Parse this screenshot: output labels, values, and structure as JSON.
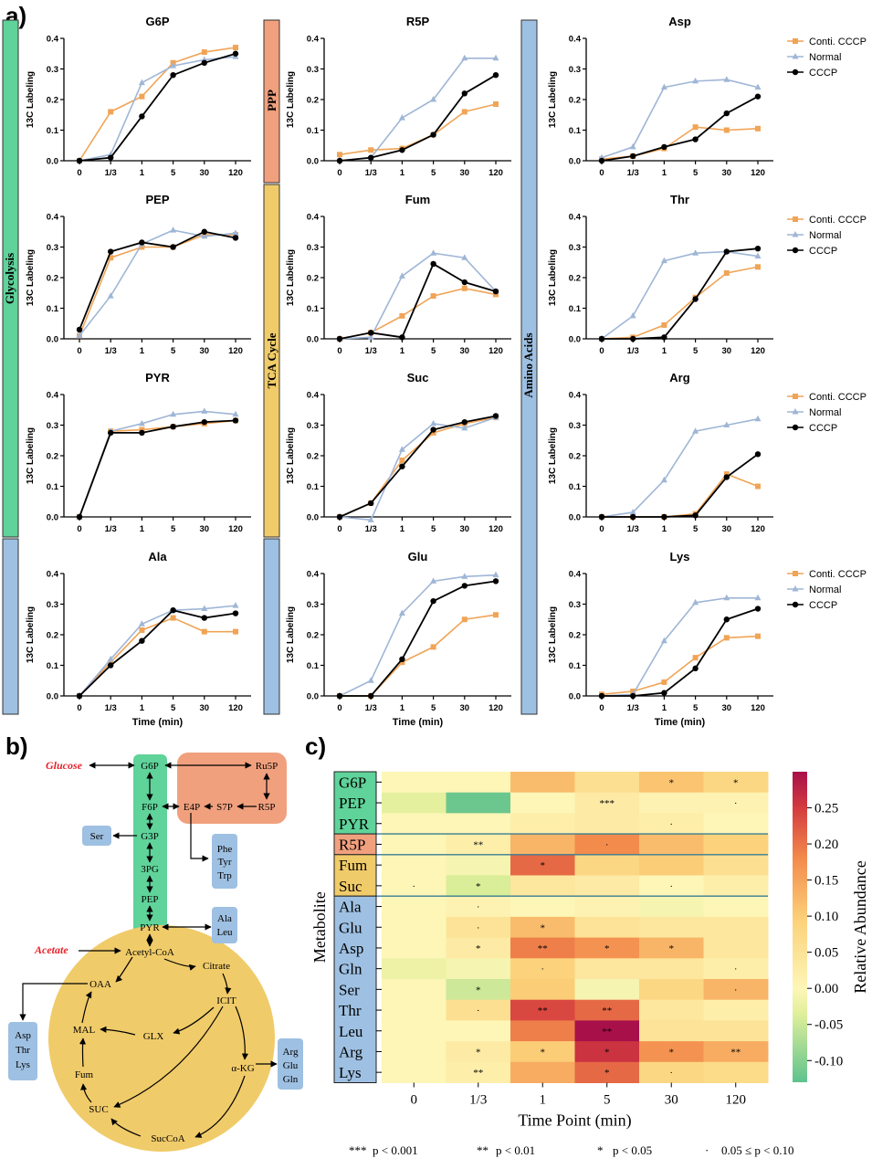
{
  "panel_labels": {
    "a": "a)",
    "b": "b)",
    "c": "c)"
  },
  "colors": {
    "conti": "#f0a456",
    "normal": "#9fb6d6",
    "cccp": "#000000",
    "green": "#5fd39a",
    "orange": "#f1a07e",
    "yellow": "#f0cb69",
    "blue": "#9ec0e2"
  },
  "side_labels": {
    "glycolysis": "Glycolysis",
    "ppp": "PPP",
    "tca": "TCA Cycle",
    "amino": "Amino Acids"
  },
  "legend": {
    "conti": "Conti. CCCP",
    "normal": "Normal",
    "cccp": "CCCP"
  },
  "chart_data": [
    {
      "type": "line",
      "title": "G6P",
      "ylabel": "13C Labeling",
      "xlabel": "",
      "categories": [
        "0",
        "1/3",
        "1",
        "5",
        "30",
        "120"
      ],
      "ylim": [
        0,
        0.4
      ],
      "yticks": [
        "0.0",
        "0.1",
        "0.2",
        "0.3",
        "0.4"
      ],
      "series": [
        {
          "name": "Conti. CCCP",
          "values": [
            0,
            0.16,
            0.21,
            0.32,
            0.355,
            0.37
          ]
        },
        {
          "name": "Normal",
          "values": [
            0,
            0.02,
            0.255,
            0.31,
            0.33,
            0.34
          ]
        },
        {
          "name": "CCCP",
          "values": [
            0,
            0.01,
            0.145,
            0.28,
            0.32,
            0.35
          ]
        }
      ]
    },
    {
      "type": "line",
      "title": "R5P",
      "ylabel": "13C Labeling",
      "xlabel": "",
      "categories": [
        "0",
        "1/3",
        "1",
        "5",
        "30",
        "120"
      ],
      "ylim": [
        0,
        0.4
      ],
      "yticks": [
        "0.0",
        "0.1",
        "0.2",
        "0.3",
        "0.4"
      ],
      "series": [
        {
          "name": "Conti. CCCP",
          "values": [
            0.02,
            0.035,
            0.04,
            0.085,
            0.16,
            0.185
          ]
        },
        {
          "name": "Normal",
          "values": [
            0,
            0.01,
            0.14,
            0.2,
            0.335,
            0.335
          ]
        },
        {
          "name": "CCCP",
          "values": [
            0,
            0.01,
            0.035,
            0.085,
            0.22,
            0.28
          ]
        }
      ]
    },
    {
      "type": "line",
      "title": "Asp",
      "ylabel": "13C Labeling",
      "xlabel": "",
      "categories": [
        "0",
        "1/3",
        "1",
        "5",
        "30",
        "120"
      ],
      "ylim": [
        0,
        0.4
      ],
      "yticks": [
        "0.0",
        "0.1",
        "0.2",
        "0.3",
        "0.4"
      ],
      "series": [
        {
          "name": "Conti. CCCP",
          "values": [
            0.005,
            0.015,
            0.04,
            0.11,
            0.1,
            0.105
          ]
        },
        {
          "name": "Normal",
          "values": [
            0.01,
            0.045,
            0.24,
            0.26,
            0.265,
            0.24
          ]
        },
        {
          "name": "CCCP",
          "values": [
            0,
            0.015,
            0.045,
            0.07,
            0.155,
            0.21
          ]
        }
      ]
    },
    {
      "type": "line",
      "title": "PEP",
      "ylabel": "13C Labeling",
      "xlabel": "",
      "categories": [
        "0",
        "1/3",
        "1",
        "5",
        "30",
        "120"
      ],
      "ylim": [
        0,
        0.4
      ],
      "yticks": [
        "0.0",
        "0.1",
        "0.2",
        "0.3",
        "0.4"
      ],
      "series": [
        {
          "name": "Conti. CCCP",
          "values": [
            0.01,
            0.265,
            0.3,
            0.3,
            0.34,
            0.34
          ]
        },
        {
          "name": "Normal",
          "values": [
            0.01,
            0.14,
            0.31,
            0.355,
            0.335,
            0.345
          ]
        },
        {
          "name": "CCCP",
          "values": [
            0.03,
            0.285,
            0.315,
            0.3,
            0.35,
            0.33
          ]
        }
      ]
    },
    {
      "type": "line",
      "title": "Fum",
      "ylabel": "13C Labeling",
      "xlabel": "",
      "categories": [
        "0",
        "1/3",
        "1",
        "5",
        "30",
        "120"
      ],
      "ylim": [
        0,
        0.4
      ],
      "yticks": [
        "0.0",
        "0.1",
        "0.2",
        "0.3",
        "0.4"
      ],
      "series": [
        {
          "name": "Conti. CCCP",
          "values": [
            0,
            0.02,
            0.075,
            0.14,
            0.165,
            0.145
          ]
        },
        {
          "name": "Normal",
          "values": [
            0,
            0.005,
            0.205,
            0.28,
            0.265,
            0.155
          ]
        },
        {
          "name": "CCCP",
          "values": [
            0,
            0.02,
            0.005,
            0.245,
            0.185,
            0.155
          ]
        }
      ]
    },
    {
      "type": "line",
      "title": "Thr",
      "ylabel": "13C Labeling",
      "xlabel": "",
      "categories": [
        "0",
        "1/3",
        "1",
        "5",
        "30",
        "120"
      ],
      "ylim": [
        0,
        0.4
      ],
      "yticks": [
        "0.0",
        "0.1",
        "0.2",
        "0.3",
        "0.4"
      ],
      "series": [
        {
          "name": "Conti. CCCP",
          "values": [
            0,
            0.005,
            0.045,
            0.135,
            0.215,
            0.235
          ]
        },
        {
          "name": "Normal",
          "values": [
            0,
            0.075,
            0.255,
            0.28,
            0.285,
            0.27
          ]
        },
        {
          "name": "CCCP",
          "values": [
            0,
            0,
            0.005,
            0.13,
            0.285,
            0.295
          ]
        }
      ]
    },
    {
      "type": "line",
      "title": "PYR",
      "ylabel": "13C Labeling",
      "xlabel": "",
      "categories": [
        "0",
        "1/3",
        "1",
        "5",
        "30",
        "120"
      ],
      "ylim": [
        0,
        0.4
      ],
      "yticks": [
        "0.0",
        "0.1",
        "0.2",
        "0.3",
        "0.4"
      ],
      "series": [
        {
          "name": "Conti. CCCP",
          "values": [
            0,
            0.28,
            0.285,
            0.295,
            0.305,
            0.315
          ]
        },
        {
          "name": "Normal",
          "values": [
            0,
            0.28,
            0.305,
            0.335,
            0.345,
            0.335
          ]
        },
        {
          "name": "CCCP",
          "values": [
            0,
            0.275,
            0.275,
            0.295,
            0.31,
            0.315
          ]
        }
      ]
    },
    {
      "type": "line",
      "title": "Suc",
      "ylabel": "13C Labeling",
      "xlabel": "",
      "categories": [
        "0",
        "1/3",
        "1",
        "5",
        "30",
        "120"
      ],
      "ylim": [
        0,
        0.4
      ],
      "yticks": [
        "0.0",
        "0.1",
        "0.2",
        "0.3",
        "0.4"
      ],
      "series": [
        {
          "name": "Conti. CCCP",
          "values": [
            0,
            0.045,
            0.185,
            0.275,
            0.305,
            0.325
          ]
        },
        {
          "name": "Normal",
          "values": [
            0,
            -0.01,
            0.22,
            0.305,
            0.29,
            0.325
          ]
        },
        {
          "name": "CCCP",
          "values": [
            0,
            0.045,
            0.165,
            0.285,
            0.31,
            0.33
          ]
        }
      ]
    },
    {
      "type": "line",
      "title": "Arg",
      "ylabel": "13C Labeling",
      "xlabel": "",
      "categories": [
        "0",
        "1/3",
        "1",
        "5",
        "30",
        "120"
      ],
      "ylim": [
        0,
        0.4
      ],
      "yticks": [
        "0.0",
        "0.1",
        "0.2",
        "0.3",
        "0.4"
      ],
      "series": [
        {
          "name": "Conti. CCCP",
          "values": [
            0,
            0,
            0,
            0.01,
            0.14,
            0.1
          ]
        },
        {
          "name": "Normal",
          "values": [
            0,
            0.015,
            0.12,
            0.28,
            0.3,
            0.32
          ]
        },
        {
          "name": "CCCP",
          "values": [
            0,
            0,
            0,
            0.005,
            0.13,
            0.205
          ]
        }
      ]
    },
    {
      "type": "line",
      "title": "Ala",
      "ylabel": "13C Labeling",
      "xlabel": "Time (min)",
      "categories": [
        "0",
        "1/3",
        "1",
        "5",
        "30",
        "120"
      ],
      "ylim": [
        0,
        0.4
      ],
      "yticks": [
        "0.0",
        "0.1",
        "0.2",
        "0.3",
        "0.4"
      ],
      "series": [
        {
          "name": "Conti. CCCP",
          "values": [
            0,
            0.11,
            0.215,
            0.255,
            0.21,
            0.21
          ]
        },
        {
          "name": "Normal",
          "values": [
            0,
            0.12,
            0.235,
            0.28,
            0.285,
            0.295
          ]
        },
        {
          "name": "CCCP",
          "values": [
            0,
            0.1,
            0.18,
            0.28,
            0.255,
            0.27
          ]
        }
      ]
    },
    {
      "type": "line",
      "title": "Glu",
      "ylabel": "13C Labeling",
      "xlabel": "Time (min)",
      "categories": [
        "0",
        "1/3",
        "1",
        "5",
        "30",
        "120"
      ],
      "ylim": [
        0,
        0.4
      ],
      "yticks": [
        "0.0",
        "0.1",
        "0.2",
        "0.3",
        "0.4"
      ],
      "series": [
        {
          "name": "Conti. CCCP",
          "values": [
            0,
            0,
            0.11,
            0.16,
            0.25,
            0.265
          ]
        },
        {
          "name": "Normal",
          "values": [
            0,
            0.05,
            0.27,
            0.375,
            0.39,
            0.395
          ]
        },
        {
          "name": "CCCP",
          "values": [
            0,
            0,
            0.12,
            0.31,
            0.36,
            0.375
          ]
        }
      ]
    },
    {
      "type": "line",
      "title": "Lys",
      "ylabel": "13C Labeling",
      "xlabel": "Time (min)",
      "categories": [
        "0",
        "1/3",
        "1",
        "5",
        "30",
        "120"
      ],
      "ylim": [
        0,
        0.4
      ],
      "yticks": [
        "0.0",
        "0.1",
        "0.2",
        "0.3",
        "0.4"
      ],
      "series": [
        {
          "name": "Conti. CCCP",
          "values": [
            0.005,
            0.015,
            0.045,
            0.125,
            0.19,
            0.195
          ]
        },
        {
          "name": "Normal",
          "values": [
            0,
            0.005,
            0.18,
            0.305,
            0.32,
            0.32
          ]
        },
        {
          "name": "CCCP",
          "values": [
            0,
            0,
            0.01,
            0.09,
            0.25,
            0.285
          ]
        }
      ]
    },
    {
      "type": "heatmap",
      "title": "",
      "xlabel": "Time Point (min)",
      "ylabel": "Metabolite",
      "colorbar_label": "Relative Abundance",
      "columns": [
        "0",
        "1/3",
        "1",
        "5",
        "30",
        "120"
      ],
      "rows": [
        "G6P",
        "PEP",
        "PYR",
        "R5P",
        "Fum",
        "Suc",
        "Ala",
        "Glu",
        "Asp",
        "Gln",
        "Ser",
        "Thr",
        "Leu",
        "Arg",
        "Lys"
      ],
      "values": [
        [
          0.0,
          0.0,
          0.12,
          0.06,
          0.11,
          0.08
        ],
        [
          -0.03,
          -0.12,
          0.0,
          0.03,
          0.01,
          0.01
        ],
        [
          0.0,
          0.0,
          0.02,
          0.03,
          0.02,
          0.0
        ],
        [
          0.0,
          0.02,
          0.13,
          0.18,
          0.12,
          0.09
        ],
        [
          0.0,
          -0.01,
          0.21,
          0.08,
          0.1,
          0.06
        ],
        [
          0.0,
          -0.04,
          0.04,
          0.03,
          0.0,
          0.02
        ],
        [
          0.0,
          0.01,
          0.0,
          0.01,
          -0.01,
          0.0
        ],
        [
          0.0,
          0.05,
          0.12,
          0.05,
          0.04,
          0.04
        ],
        [
          0.0,
          0.03,
          0.19,
          0.17,
          0.13,
          0.04
        ],
        [
          -0.02,
          -0.01,
          0.09,
          0.04,
          0.04,
          0.02
        ],
        [
          0.0,
          -0.05,
          0.1,
          -0.01,
          0.08,
          0.13
        ],
        [
          0.0,
          0.06,
          0.24,
          0.21,
          0.04,
          0.02
        ],
        [
          0.0,
          0.0,
          0.19,
          0.3,
          0.05,
          0.05
        ],
        [
          0.0,
          0.03,
          0.1,
          0.26,
          0.17,
          0.14
        ],
        [
          0.0,
          0.02,
          0.14,
          0.21,
          0.08,
          0.07
        ]
      ],
      "sig": [
        [
          "",
          "",
          "",
          "",
          "*",
          "*"
        ],
        [
          "",
          "",
          "",
          "***",
          "",
          "·"
        ],
        [
          "",
          "",
          "",
          "",
          "·",
          ""
        ],
        [
          "",
          "**",
          "",
          "·",
          "",
          ""
        ],
        [
          "",
          "",
          "*",
          "",
          "",
          ""
        ],
        [
          "·",
          "*",
          "",
          "",
          "·",
          ""
        ],
        [
          "",
          "·",
          "",
          "",
          "",
          ""
        ],
        [
          "",
          "·",
          "*",
          "",
          "",
          ""
        ],
        [
          "",
          "*",
          "**",
          "*",
          "*",
          ""
        ],
        [
          "",
          "",
          "·",
          "",
          "",
          "·"
        ],
        [
          "",
          "*",
          "",
          "",
          "",
          "·"
        ],
        [
          "",
          "·",
          "**",
          "**",
          "",
          ""
        ],
        [
          "",
          "",
          "",
          "**",
          "",
          ""
        ],
        [
          "",
          "*",
          "*",
          "*",
          "*",
          "**"
        ],
        [
          "",
          "**",
          "",
          "*",
          "·",
          ""
        ]
      ],
      "colorbar_ticks": [
        "0.25",
        "0.20",
        "0.15",
        "0.10",
        "0.05",
        "0.00",
        "-0.05",
        "-0.10"
      ],
      "colorbar_values": [
        0.25,
        0.2,
        0.15,
        0.1,
        0.05,
        0.0,
        -0.05,
        -0.1
      ],
      "vmin": -0.13,
      "vmax": 0.3
    }
  ],
  "pathway": {
    "glucose": "Glucose",
    "acetate": "Acetate",
    "g6p": "G6P",
    "f6p": "F6P",
    "g3p": "G3P",
    "pg3": "3PG",
    "pep": "PEP",
    "pyr": "PYR",
    "ru5p": "Ru5P",
    "r5p": "R5P",
    "s7p": "S7P",
    "e4p": "E4P",
    "ser": "Ser",
    "phe": "Phe",
    "tyr": "Tyr",
    "trp": "Trp",
    "ala": "Ala",
    "leu": "Leu",
    "acetylcoa": "Acetyl-CoA",
    "citrate": "Citrate",
    "oaa": "OAA",
    "icit": "ICIT",
    "glx": "GLX",
    "mal": "MAL",
    "fum": "Fum",
    "akg": "α-KG",
    "suc": "SUC",
    "succoa": "SucCoA",
    "asp": "Asp",
    "thr": "Thr",
    "lys": "Lys",
    "arg": "Arg",
    "glu": "Glu",
    "gln": "Gln"
  },
  "footnote": {
    "s3": "***",
    "t3": "p < 0.001",
    "s2": "**",
    "t2": "p < 0.01",
    "s1": "*",
    "t1": "p < 0.05",
    "s0": "·",
    "t0": "0.05 ≤ p < 0.10"
  }
}
